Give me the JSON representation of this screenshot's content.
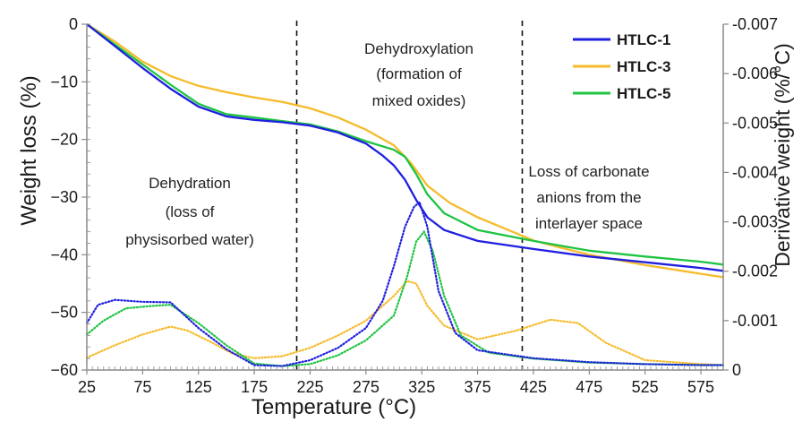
{
  "chart_data": {
    "type": "line",
    "xlabel": "Temperature (°C)",
    "ylabel": "Weight loss (%)",
    "y2label": "Derivative weight (%/°C)",
    "x_ticks": [
      25,
      75,
      125,
      175,
      225,
      275,
      325,
      375,
      425,
      475,
      525,
      575
    ],
    "y_ticks": [
      0,
      -10,
      -20,
      -30,
      -40,
      -50,
      -60
    ],
    "y2_ticks": [
      {
        "value": -0.007,
        "label": "-0.007"
      },
      {
        "value": -0.006,
        "label": "-0.006"
      },
      {
        "value": -0.005,
        "label": "-0.005"
      },
      {
        "value": -0.004,
        "label": "-0.004"
      },
      {
        "value": -0.003,
        "label": "-0.003"
      },
      {
        "value": -0.002,
        "label": "-0.002"
      },
      {
        "value": -0.001,
        "label": "-0.001"
      },
      {
        "value": 0,
        "label": "0"
      }
    ],
    "xlim": [
      25,
      595
    ],
    "ylim": [
      -60,
      0
    ],
    "y2lim": [
      0,
      -0.007
    ],
    "legend": {
      "position": "top-right"
    },
    "series": [
      {
        "name": "HTLC-1",
        "color": "#1f1fe0",
        "weight_loss": [
          [
            25,
            0
          ],
          [
            50,
            -3.8
          ],
          [
            75,
            -7.6
          ],
          [
            100,
            -11.2
          ],
          [
            125,
            -14.3
          ],
          [
            150,
            -16
          ],
          [
            175,
            -16.6
          ],
          [
            200,
            -17
          ],
          [
            225,
            -17.6
          ],
          [
            250,
            -18.8
          ],
          [
            275,
            -20.7
          ],
          [
            290,
            -22.8
          ],
          [
            300,
            -24.5
          ],
          [
            310,
            -27
          ],
          [
            320,
            -30.5
          ],
          [
            330,
            -33.5
          ],
          [
            345,
            -35.7
          ],
          [
            375,
            -37.6
          ],
          [
            425,
            -39
          ],
          [
            475,
            -40.3
          ],
          [
            525,
            -41.3
          ],
          [
            575,
            -42.3
          ],
          [
            595,
            -42.8
          ]
        ],
        "derivative": [
          [
            25,
            -0.00095
          ],
          [
            35,
            -0.00132
          ],
          [
            50,
            -0.00142
          ],
          [
            75,
            -0.00138
          ],
          [
            100,
            -0.00137
          ],
          [
            125,
            -0.00085
          ],
          [
            150,
            -0.00042
          ],
          [
            175,
            -0.0001
          ],
          [
            200,
            -8e-05
          ],
          [
            225,
            -0.0002
          ],
          [
            250,
            -0.00045
          ],
          [
            275,
            -0.00085
          ],
          [
            290,
            -0.0014
          ],
          [
            300,
            -0.0021
          ],
          [
            310,
            -0.0029
          ],
          [
            318,
            -0.0033
          ],
          [
            323,
            -0.0034
          ],
          [
            330,
            -0.0029
          ],
          [
            340,
            -0.0016
          ],
          [
            355,
            -0.00075
          ],
          [
            375,
            -0.0004
          ],
          [
            425,
            -0.00024
          ],
          [
            475,
            -0.00016
          ],
          [
            525,
            -0.00012
          ],
          [
            575,
            -0.0001
          ],
          [
            595,
            -0.0001
          ]
        ]
      },
      {
        "name": "HTLC-3",
        "color": "#f6bb2a",
        "weight_loss": [
          [
            25,
            0
          ],
          [
            50,
            -3
          ],
          [
            75,
            -6.5
          ],
          [
            100,
            -9
          ],
          [
            125,
            -10.7
          ],
          [
            150,
            -11.8
          ],
          [
            175,
            -12.7
          ],
          [
            200,
            -13.5
          ],
          [
            225,
            -14.6
          ],
          [
            250,
            -16.2
          ],
          [
            275,
            -18.3
          ],
          [
            300,
            -21
          ],
          [
            315,
            -24
          ],
          [
            330,
            -28
          ],
          [
            350,
            -31
          ],
          [
            375,
            -33.5
          ],
          [
            400,
            -35.5
          ],
          [
            425,
            -37.5
          ],
          [
            450,
            -38.8
          ],
          [
            475,
            -40
          ],
          [
            525,
            -41.8
          ],
          [
            575,
            -43.3
          ],
          [
            595,
            -43.9
          ]
        ],
        "derivative": [
          [
            25,
            -0.00025
          ],
          [
            50,
            -0.0005
          ],
          [
            75,
            -0.00072
          ],
          [
            100,
            -0.00088
          ],
          [
            115,
            -0.0008
          ],
          [
            135,
            -0.00058
          ],
          [
            155,
            -0.00034
          ],
          [
            175,
            -0.00024
          ],
          [
            200,
            -0.00028
          ],
          [
            225,
            -0.00045
          ],
          [
            250,
            -0.0007
          ],
          [
            275,
            -0.001
          ],
          [
            300,
            -0.0015
          ],
          [
            312,
            -0.0018
          ],
          [
            320,
            -0.00175
          ],
          [
            330,
            -0.0013
          ],
          [
            345,
            -0.0009
          ],
          [
            375,
            -0.00062
          ],
          [
            410,
            -0.0008
          ],
          [
            440,
            -0.00102
          ],
          [
            465,
            -0.00095
          ],
          [
            490,
            -0.00055
          ],
          [
            525,
            -0.0002
          ],
          [
            575,
            -0.00012
          ],
          [
            595,
            -0.0001
          ]
        ]
      },
      {
        "name": "HTLC-5",
        "color": "#1ec442",
        "weight_loss": [
          [
            25,
            0
          ],
          [
            50,
            -3.5
          ],
          [
            75,
            -7
          ],
          [
            100,
            -10.5
          ],
          [
            125,
            -13.8
          ],
          [
            150,
            -15.6
          ],
          [
            175,
            -16.2
          ],
          [
            200,
            -16.8
          ],
          [
            225,
            -17.4
          ],
          [
            250,
            -18.6
          ],
          [
            275,
            -20.3
          ],
          [
            300,
            -21.8
          ],
          [
            310,
            -23
          ],
          [
            320,
            -26
          ],
          [
            330,
            -29.5
          ],
          [
            345,
            -32.8
          ],
          [
            375,
            -35.7
          ],
          [
            425,
            -37.6
          ],
          [
            475,
            -39.3
          ],
          [
            525,
            -40.3
          ],
          [
            575,
            -41.2
          ],
          [
            595,
            -41.7
          ]
        ],
        "derivative": [
          [
            25,
            -0.00072
          ],
          [
            40,
            -0.001
          ],
          [
            60,
            -0.00125
          ],
          [
            85,
            -0.0013
          ],
          [
            100,
            -0.00132
          ],
          [
            125,
            -0.00095
          ],
          [
            150,
            -0.0005
          ],
          [
            175,
            -0.00013
          ],
          [
            200,
            -8e-05
          ],
          [
            225,
            -0.00012
          ],
          [
            250,
            -0.0003
          ],
          [
            275,
            -0.0006
          ],
          [
            300,
            -0.0011
          ],
          [
            312,
            -0.0019
          ],
          [
            320,
            -0.0026
          ],
          [
            327,
            -0.0028
          ],
          [
            335,
            -0.0024
          ],
          [
            345,
            -0.0015
          ],
          [
            360,
            -0.0007
          ],
          [
            385,
            -0.00035
          ],
          [
            425,
            -0.00023
          ],
          [
            475,
            -0.00015
          ],
          [
            525,
            -0.00012
          ],
          [
            575,
            -0.0001
          ],
          [
            595,
            -0.0001
          ]
        ]
      }
    ],
    "dividers": [
      213,
      415
    ],
    "annotations": {
      "region1": [
        "Dehydration",
        "(loss of",
        "physisorbed water)"
      ],
      "region2": [
        "Dehydroxylation",
        "(formation of",
        "mixed oxides)"
      ],
      "region3": [
        "Loss of carbonate",
        "anions from the",
        "interlayer space"
      ]
    }
  }
}
